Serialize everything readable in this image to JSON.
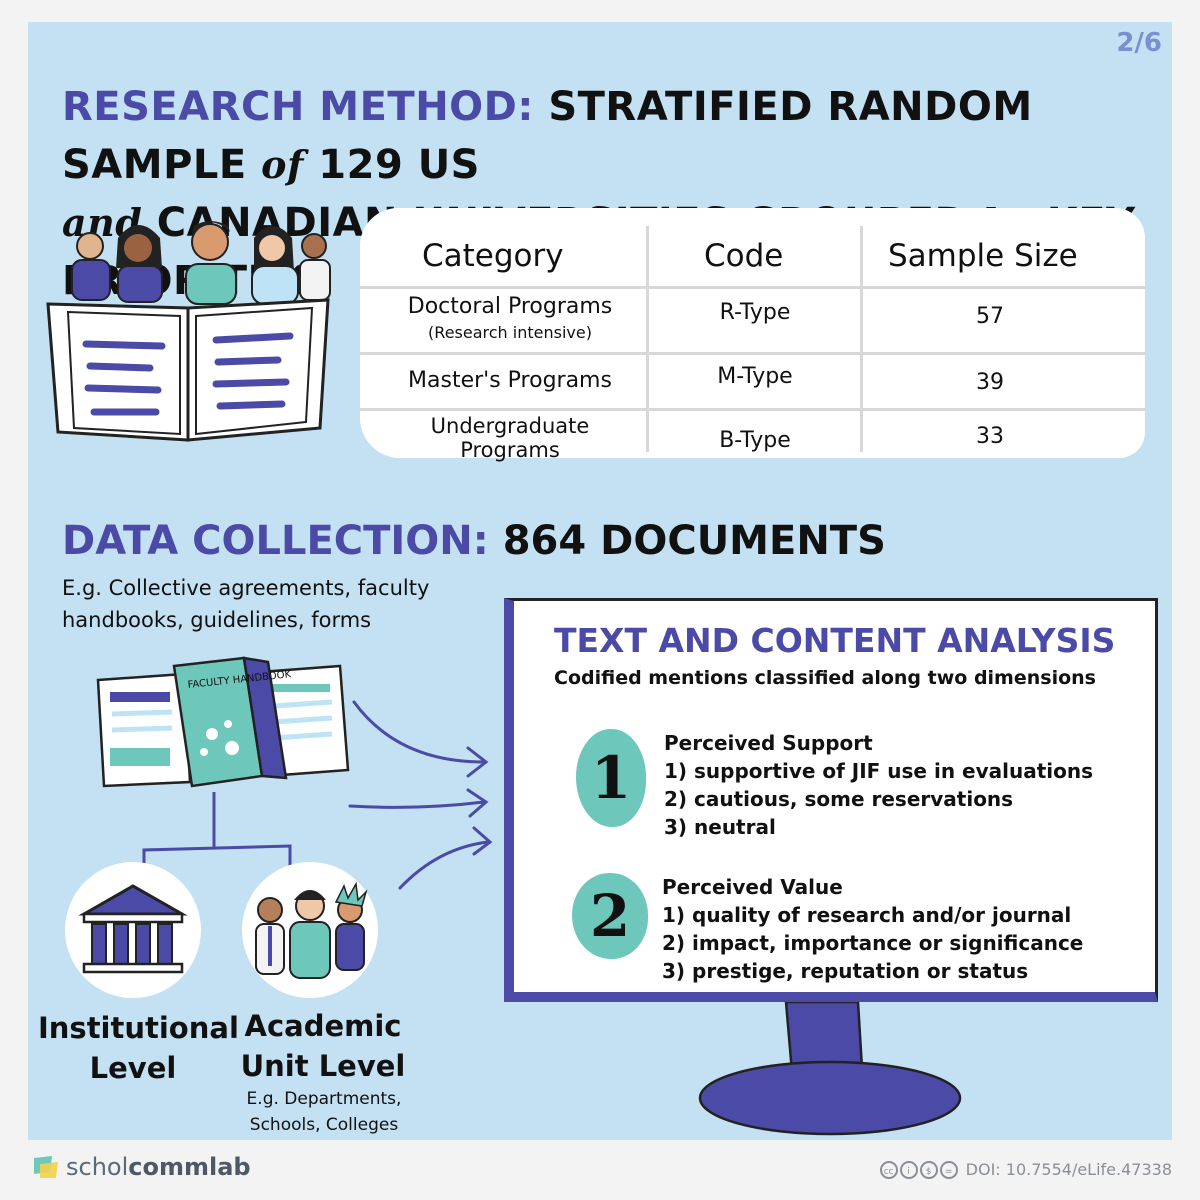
{
  "page_number": "2/6",
  "headline": {
    "part1": "RESEARCH METHOD:",
    "part2": "STRATIFIED RANDOM SAMPLE",
    "part3": "of",
    "part4": "129 US",
    "part5": "and",
    "part6": "CANADIAN UNIVERSITIES GROUPED",
    "part7": "by",
    "part8": "KEY PRIORITIES"
  },
  "sample_table": {
    "headers": [
      "Category",
      "Code",
      "Sample Size"
    ],
    "rows": [
      {
        "category": "Doctoral Programs",
        "note": "(Research intensive)",
        "code": "R-Type",
        "size": "57"
      },
      {
        "category": "Master's Programs",
        "note": "",
        "code": "M-Type",
        "size": "39"
      },
      {
        "category": "Undergraduate Programs",
        "note": "",
        "code": "B-Type",
        "size": "33"
      }
    ]
  },
  "data_collection": {
    "label": "DATA COLLECTION:",
    "value": "864 DOCUMENTS",
    "examples": "E.g. Collective agreements, faculty handbooks, guidelines, forms",
    "handbook_label": "FACULTY HANDBOOK"
  },
  "levels": {
    "institutional": "Institutional Level",
    "academic_unit": "Academic Unit Level",
    "academic_unit_examples": "E.g. Departments, Schools, Colleges"
  },
  "analysis": {
    "title": "TEXT AND CONTENT ANALYSIS",
    "subtitle": "Codified mentions classified along two dimensions",
    "dimensions": [
      {
        "number": "1",
        "title": "Perceived Support",
        "items": [
          "1) supportive of JIF use in evaluations",
          "2) cautious, some reservations",
          "3) neutral"
        ]
      },
      {
        "number": "2",
        "title": "Perceived Value",
        "items": [
          "1) quality of research and/or journal",
          "2) impact, importance or significance",
          "3) prestige, reputation or status"
        ]
      }
    ]
  },
  "footer": {
    "brand_light": "schol",
    "brand_bold": "commlab",
    "doi": "DOI: 10.7554/eLife.47338"
  },
  "colors": {
    "background": "#c3e1f2",
    "accent_purple": "#4b4aa6",
    "accent_teal": "#6dc7bb"
  }
}
